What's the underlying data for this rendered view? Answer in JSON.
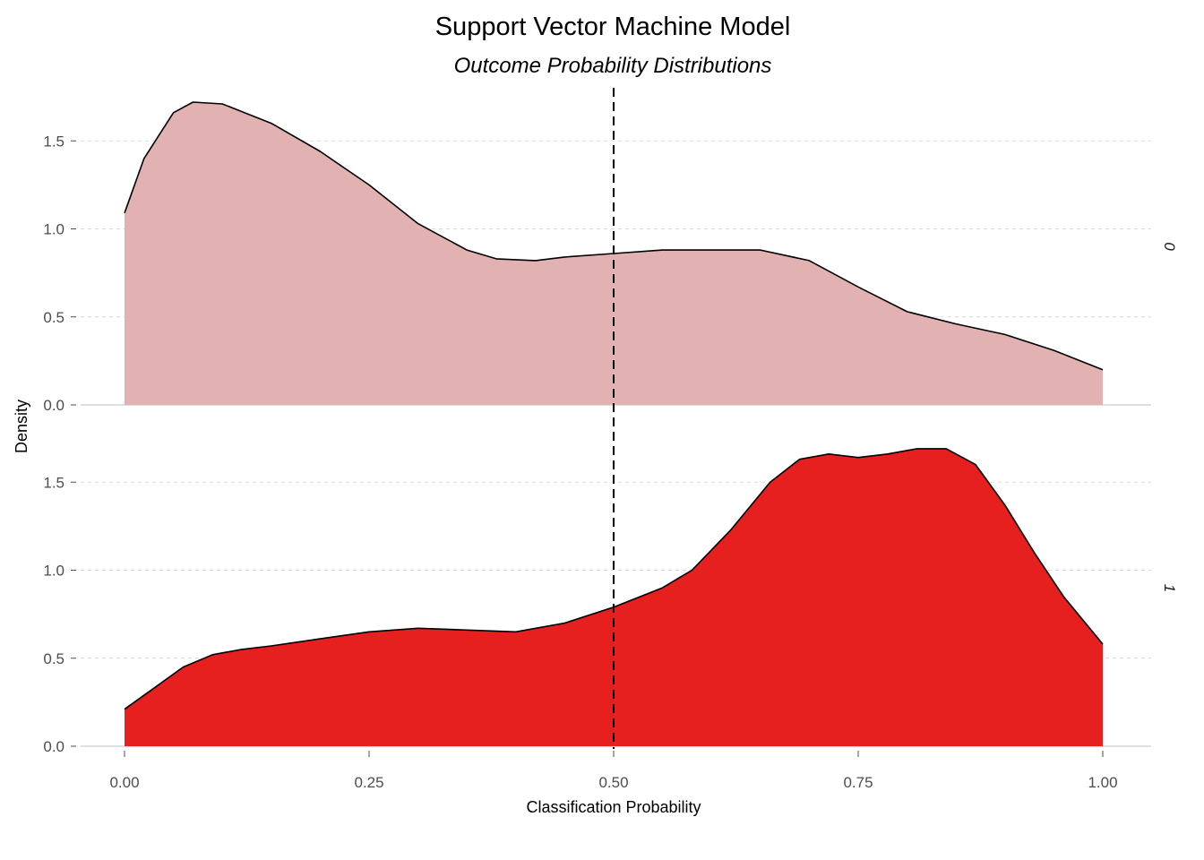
{
  "chart_data": {
    "type": "area",
    "title": "Support Vector Machine Model",
    "subtitle": "Outcome Probability Distributions",
    "xlabel": "Classification Probability",
    "ylabel": "Density",
    "xlim": [
      0,
      1
    ],
    "ylim": [
      0,
      1.8
    ],
    "x_ticks": [
      "0.00",
      "0.25",
      "0.50",
      "0.75",
      "1.00"
    ],
    "y_ticks": [
      "0.0",
      "0.5",
      "1.0",
      "1.5"
    ],
    "threshold": 0.5,
    "grid": "horizontal dashed",
    "facet_strip_position": "right",
    "series": [
      {
        "facet": "0",
        "fill": "#e2b2b2",
        "x": [
          0.0,
          0.02,
          0.05,
          0.07,
          0.1,
          0.15,
          0.2,
          0.25,
          0.3,
          0.35,
          0.38,
          0.42,
          0.45,
          0.5,
          0.55,
          0.6,
          0.65,
          0.7,
          0.75,
          0.8,
          0.85,
          0.9,
          0.95,
          1.0
        ],
        "y": [
          1.09,
          1.4,
          1.66,
          1.72,
          1.71,
          1.6,
          1.44,
          1.25,
          1.03,
          0.88,
          0.83,
          0.82,
          0.84,
          0.86,
          0.88,
          0.88,
          0.88,
          0.82,
          0.67,
          0.53,
          0.46,
          0.4,
          0.31,
          0.2
        ]
      },
      {
        "facet": "1",
        "fill": "#e61f1f",
        "x": [
          0.0,
          0.03,
          0.06,
          0.09,
          0.12,
          0.15,
          0.2,
          0.25,
          0.3,
          0.35,
          0.4,
          0.45,
          0.5,
          0.55,
          0.58,
          0.62,
          0.66,
          0.69,
          0.72,
          0.75,
          0.78,
          0.81,
          0.84,
          0.87,
          0.9,
          0.93,
          0.96,
          1.0
        ],
        "y": [
          0.21,
          0.33,
          0.45,
          0.52,
          0.55,
          0.57,
          0.61,
          0.65,
          0.67,
          0.66,
          0.65,
          0.7,
          0.79,
          0.9,
          1.0,
          1.23,
          1.5,
          1.63,
          1.66,
          1.64,
          1.66,
          1.69,
          1.69,
          1.6,
          1.37,
          1.1,
          0.85,
          0.58
        ]
      }
    ]
  }
}
